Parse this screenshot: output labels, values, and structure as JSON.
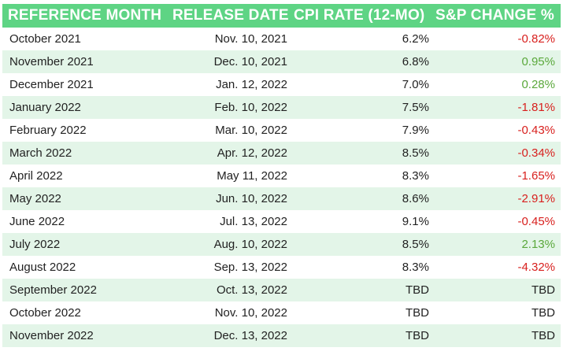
{
  "headers": [
    "REFERENCE MONTH",
    "RELEASE DATE",
    "CPI RATE (12-MO)",
    "S&P CHANGE %"
  ],
  "colors": {
    "header_bg": "#5ed484",
    "stripe_bg": "#e3f5e8",
    "negative": "#d8201e",
    "positive": "#5aa83b"
  },
  "rows": [
    {
      "month": "October 2021",
      "release": "Nov. 10, 2021",
      "cpi": "6.2%",
      "sp": "-0.82%",
      "sign": "neg"
    },
    {
      "month": "November 2021",
      "release": "Dec. 10, 2021",
      "cpi": "6.8%",
      "sp": "0.95%",
      "sign": "pos"
    },
    {
      "month": "December 2021",
      "release": "Jan. 12, 2022",
      "cpi": "7.0%",
      "sp": "0.28%",
      "sign": "pos"
    },
    {
      "month": "January 2022",
      "release": "Feb. 10, 2022",
      "cpi": "7.5%",
      "sp": "-1.81%",
      "sign": "neg"
    },
    {
      "month": "February 2022",
      "release": "Mar. 10, 2022",
      "cpi": "7.9%",
      "sp": "-0.43%",
      "sign": "neg"
    },
    {
      "month": "March 2022",
      "release": "Apr. 12, 2022",
      "cpi": "8.5%",
      "sp": "-0.34%",
      "sign": "neg"
    },
    {
      "month": "April 2022",
      "release": "May 11, 2022",
      "cpi": "8.3%",
      "sp": "-1.65%",
      "sign": "neg"
    },
    {
      "month": "May 2022",
      "release": "Jun. 10, 2022",
      "cpi": "8.6%",
      "sp": "-2.91%",
      "sign": "neg"
    },
    {
      "month": "June 2022",
      "release": "Jul. 13, 2022",
      "cpi": "9.1%",
      "sp": "-0.45%",
      "sign": "neg"
    },
    {
      "month": "July 2022",
      "release": "Aug. 10, 2022",
      "cpi": "8.5%",
      "sp": "2.13%",
      "sign": "pos"
    },
    {
      "month": "August 2022",
      "release": "Sep. 13, 2022",
      "cpi": "8.3%",
      "sp": "-4.32%",
      "sign": "neg"
    },
    {
      "month": "September 2022",
      "release": "Oct. 13, 2022",
      "cpi": "TBD",
      "sp": "TBD",
      "sign": "neutral"
    },
    {
      "month": "October 2022",
      "release": "Nov. 10, 2022",
      "cpi": "TBD",
      "sp": "TBD",
      "sign": "neutral"
    },
    {
      "month": "November 2022",
      "release": "Dec. 13, 2022",
      "cpi": "TBD",
      "sp": "TBD",
      "sign": "neutral"
    }
  ]
}
